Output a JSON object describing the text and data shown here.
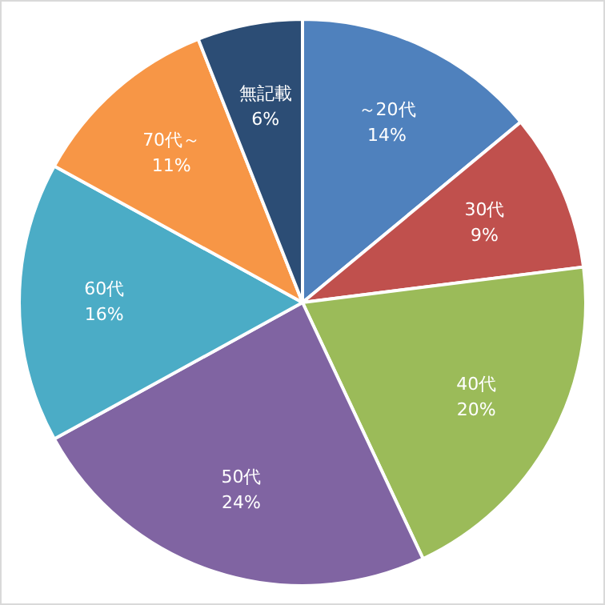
{
  "chart_data": {
    "type": "pie",
    "categories": [
      "～20代",
      "30代",
      "40代",
      "50代",
      "60代",
      "70代～",
      "無記載"
    ],
    "values": [
      14,
      9,
      20,
      24,
      16,
      11,
      6
    ],
    "value_labels": [
      "14%",
      "9%",
      "20%",
      "24%",
      "16%",
      "11%",
      "6%"
    ],
    "colors": [
      "#4f81bd",
      "#c0504d",
      "#9bbb59",
      "#8064a2",
      "#4bacc6",
      "#f79646",
      "#2c4d75"
    ],
    "legend": false
  }
}
